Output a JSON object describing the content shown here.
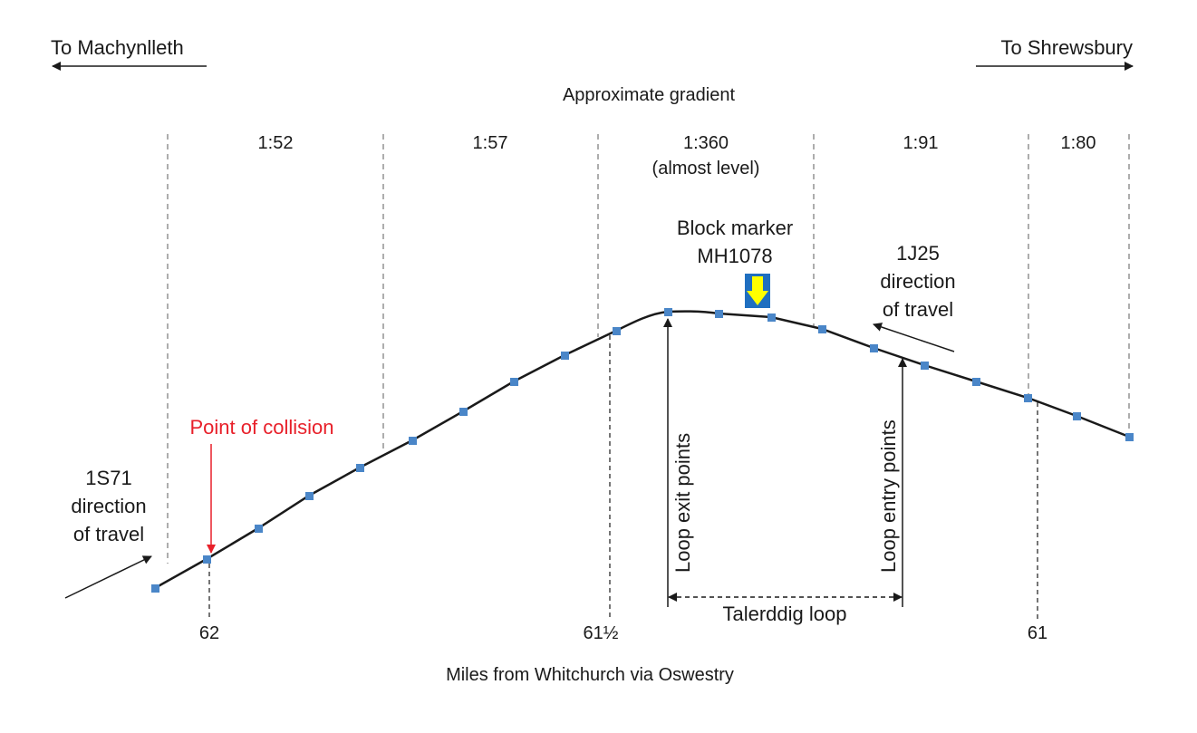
{
  "direction_labels": {
    "left": "To Machynlleth",
    "right": "To Shrewsbury"
  },
  "gradient_heading": "Approximate gradient",
  "gradients": [
    {
      "value": "1:52",
      "note": ""
    },
    {
      "value": "1:57",
      "note": ""
    },
    {
      "value": "1:360",
      "note": "(almost level)"
    },
    {
      "value": "1:91",
      "note": ""
    },
    {
      "value": "1:80",
      "note": ""
    }
  ],
  "block_marker": {
    "line1": "Block marker",
    "line2": "MH1078",
    "colors": {
      "background": "#1f6fc0",
      "arrow": "#ffff00"
    }
  },
  "train_1j25": {
    "line1": "1J25",
    "line2": "direction",
    "line3": "of travel"
  },
  "train_1s71": {
    "line1": "1S71",
    "line2": "direction",
    "line3": "of travel"
  },
  "collision": {
    "label": "Point of collision",
    "color": "#e8202a"
  },
  "loop_exit": "Loop exit points",
  "loop_entry": "Loop entry points",
  "loop_name": "Talerddig loop",
  "mileposts": [
    "62",
    "61½",
    "61"
  ],
  "x_axis_label": "Miles from Whitchurch via Oswestry",
  "marker_color": "#4a86c8",
  "line_color": "#1a1a1a"
}
